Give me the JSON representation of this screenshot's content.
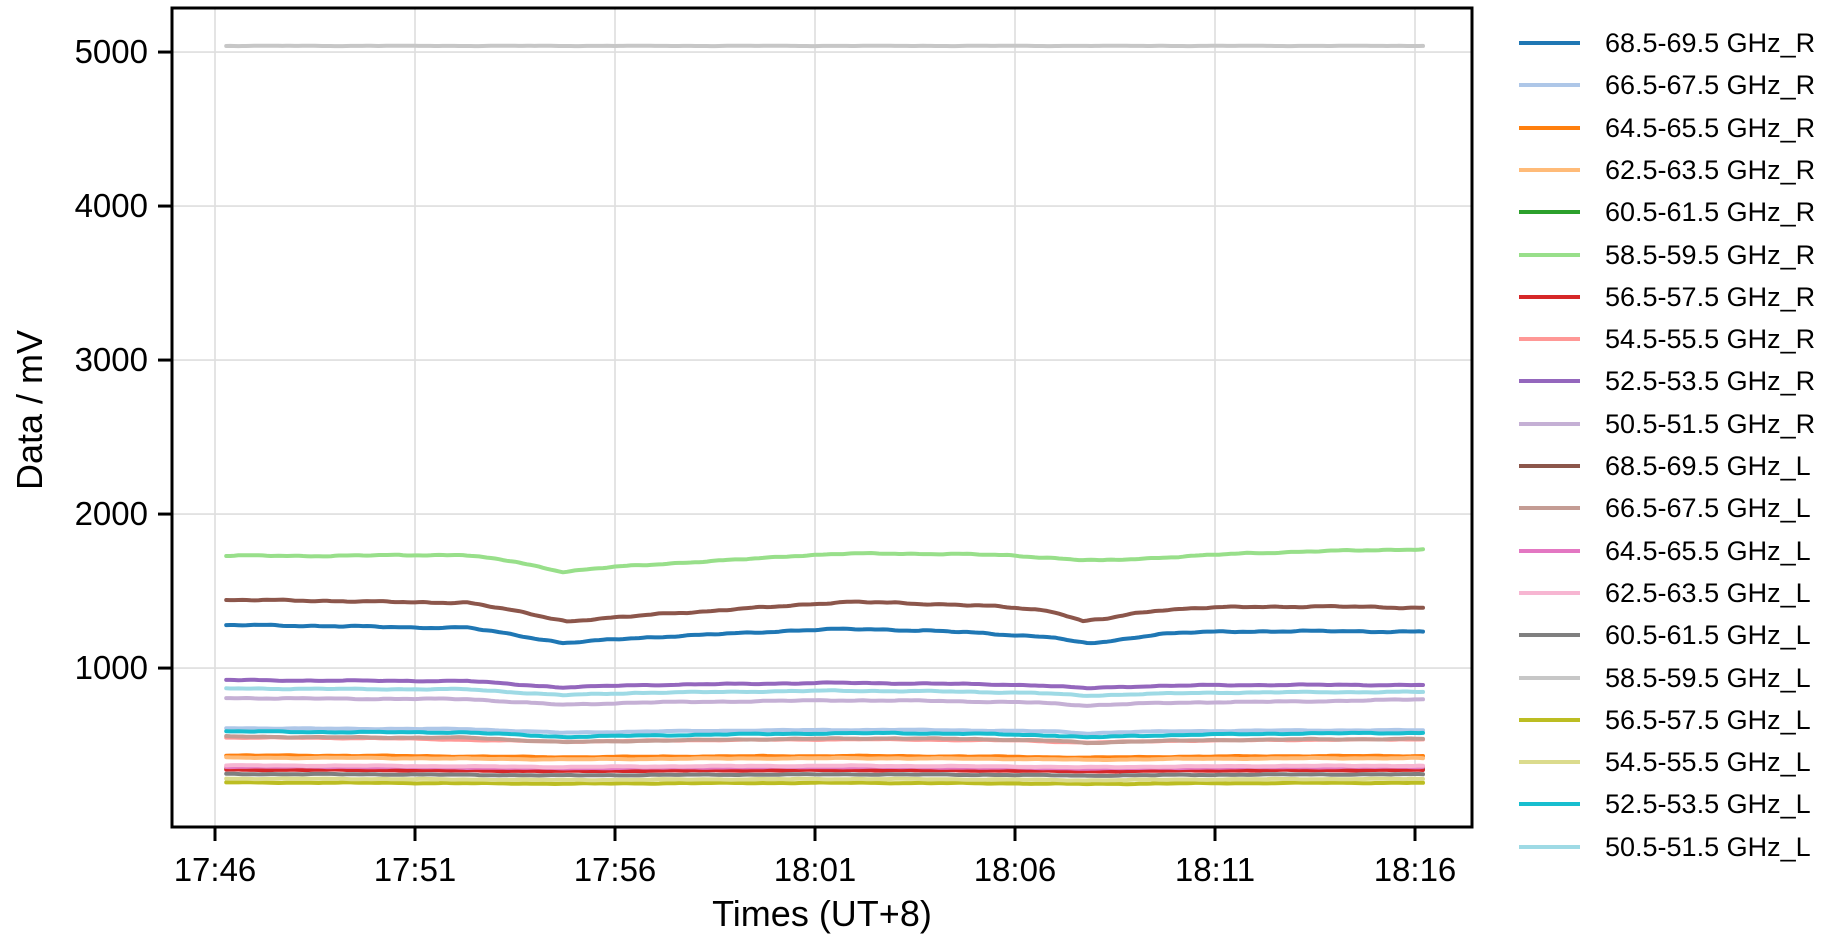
{
  "chart_data": {
    "type": "line",
    "title": "",
    "xlabel": "Times (UT+8)",
    "ylabel": "Data / mV",
    "grid": true,
    "legend_position": "right",
    "xlim_minutes_from_1746": [
      -1.075,
      31.425
    ],
    "ylim": [
      -32,
      5286
    ],
    "x_ticks": [
      {
        "t": 0,
        "label": "17:46"
      },
      {
        "t": 5,
        "label": "17:51"
      },
      {
        "t": 10,
        "label": "17:56"
      },
      {
        "t": 15,
        "label": "18:01"
      },
      {
        "t": 20,
        "label": "18:06"
      },
      {
        "t": 25,
        "label": "18:11"
      },
      {
        "t": 30,
        "label": "18:16"
      }
    ],
    "y_ticks": [
      1000,
      2000,
      3000,
      4000,
      5000
    ],
    "series": [
      {
        "name": "68.5-69.5 GHz_R",
        "color": "#1f77b4",
        "points": [
          [
            0.28,
            1277
          ],
          [
            1.5,
            1278
          ],
          [
            3,
            1272
          ],
          [
            5,
            1264
          ],
          [
            6.3,
            1263
          ],
          [
            7.5,
            1215
          ],
          [
            8.7,
            1164
          ],
          [
            9.3,
            1172
          ],
          [
            10,
            1186
          ],
          [
            11.3,
            1206
          ],
          [
            13,
            1224
          ],
          [
            14.5,
            1245
          ],
          [
            15.5,
            1252
          ],
          [
            16.5,
            1251
          ],
          [
            17.8,
            1244
          ],
          [
            19,
            1228
          ],
          [
            20,
            1214
          ],
          [
            20.6,
            1207
          ],
          [
            21,
            1200
          ],
          [
            21.3,
            1178
          ],
          [
            21.8,
            1160
          ],
          [
            22.3,
            1170
          ],
          [
            23,
            1200
          ],
          [
            23.6,
            1222
          ],
          [
            24.3,
            1230
          ],
          [
            25.5,
            1237
          ],
          [
            27,
            1240
          ],
          [
            28.5,
            1238
          ],
          [
            30.2,
            1237
          ]
        ]
      },
      {
        "name": "66.5-67.5 GHz_R",
        "color": "#aec7e8",
        "points": [
          [
            0.28,
            610
          ],
          [
            3,
            606
          ],
          [
            6.3,
            604
          ],
          [
            8.7,
            580
          ],
          [
            11,
            589
          ],
          [
            14,
            596
          ],
          [
            17,
            599
          ],
          [
            19.5,
            594
          ],
          [
            21,
            588
          ],
          [
            21.8,
            576
          ],
          [
            23,
            586
          ],
          [
            25,
            592
          ],
          [
            27,
            595
          ],
          [
            30.2,
            596
          ]
        ]
      },
      {
        "name": "64.5-65.5 GHz_R",
        "color": "#ff7f0e",
        "points": [
          [
            0.28,
            432
          ],
          [
            4,
            430
          ],
          [
            8.7,
            421
          ],
          [
            12,
            426
          ],
          [
            16,
            429
          ],
          [
            20,
            424
          ],
          [
            21.8,
            418
          ],
          [
            24,
            424
          ],
          [
            27,
            428
          ],
          [
            30.2,
            429
          ]
        ]
      },
      {
        "name": "62.5-63.5 GHz_R",
        "color": "#ffbb78",
        "points": [
          [
            0.28,
            418
          ],
          [
            4,
            416
          ],
          [
            8.7,
            407
          ],
          [
            12,
            412
          ],
          [
            16,
            415
          ],
          [
            20,
            410
          ],
          [
            21.8,
            404
          ],
          [
            24,
            410
          ],
          [
            27,
            414
          ],
          [
            30.2,
            415
          ]
        ]
      },
      {
        "name": "60.5-61.5 GHz_R",
        "color": "#2ca02c",
        "points": [
          [
            0.28,
            346
          ],
          [
            4,
            344
          ],
          [
            8.7,
            337
          ],
          [
            12,
            341
          ],
          [
            16,
            344
          ],
          [
            20,
            340
          ],
          [
            21.8,
            335
          ],
          [
            24,
            340
          ],
          [
            27,
            343
          ],
          [
            30.2,
            344
          ]
        ]
      },
      {
        "name": "58.5-59.5 GHz_R",
        "color": "#98df8a",
        "points": [
          [
            0.28,
            1730
          ],
          [
            2,
            1728
          ],
          [
            4,
            1731
          ],
          [
            6.2,
            1736
          ],
          [
            7.5,
            1690
          ],
          [
            8.7,
            1626
          ],
          [
            9.5,
            1645
          ],
          [
            10,
            1657
          ],
          [
            11.5,
            1682
          ],
          [
            13,
            1702
          ],
          [
            14.5,
            1730
          ],
          [
            15.8,
            1742
          ],
          [
            17,
            1744
          ],
          [
            18.5,
            1740
          ],
          [
            19.8,
            1733
          ],
          [
            20.8,
            1718
          ],
          [
            21.5,
            1703
          ],
          [
            22.2,
            1698
          ],
          [
            23.2,
            1712
          ],
          [
            24.5,
            1728
          ],
          [
            25.8,
            1746
          ],
          [
            27,
            1754
          ],
          [
            28.5,
            1764
          ],
          [
            30.2,
            1772
          ]
        ]
      },
      {
        "name": "56.5-57.5 GHz_R",
        "color": "#d62728",
        "points": [
          [
            0.28,
            340
          ],
          [
            4,
            338
          ],
          [
            8.7,
            331
          ],
          [
            12,
            335
          ],
          [
            16,
            338
          ],
          [
            20,
            334
          ],
          [
            21.8,
            329
          ],
          [
            24,
            334
          ],
          [
            27,
            337
          ],
          [
            30.2,
            338
          ]
        ]
      },
      {
        "name": "54.5-55.5 GHz_R",
        "color": "#ff9896",
        "points": [
          [
            0.28,
            549
          ],
          [
            4,
            545
          ],
          [
            8.7,
            522
          ],
          [
            12,
            532
          ],
          [
            16,
            538
          ],
          [
            20,
            530
          ],
          [
            21.8,
            516
          ],
          [
            24,
            528
          ],
          [
            27,
            534
          ],
          [
            30.2,
            537
          ]
        ]
      },
      {
        "name": "52.5-53.5 GHz_R",
        "color": "#9467bd",
        "points": [
          [
            0.28,
            922
          ],
          [
            3,
            918
          ],
          [
            6.3,
            916
          ],
          [
            8.7,
            874
          ],
          [
            10.5,
            889
          ],
          [
            13,
            897
          ],
          [
            15.5,
            904
          ],
          [
            18,
            899
          ],
          [
            20.5,
            889
          ],
          [
            21.8,
            869
          ],
          [
            23,
            881
          ],
          [
            25,
            889
          ],
          [
            27,
            891
          ],
          [
            30.2,
            890
          ]
        ]
      },
      {
        "name": "50.5-51.5 GHz_R",
        "color": "#c5b0d5",
        "points": [
          [
            0.28,
            806
          ],
          [
            3,
            801
          ],
          [
            6.3,
            799
          ],
          [
            8.7,
            761
          ],
          [
            10.5,
            776
          ],
          [
            13,
            783
          ],
          [
            15.5,
            791
          ],
          [
            18,
            787
          ],
          [
            20.5,
            776
          ],
          [
            21.8,
            757
          ],
          [
            23,
            769
          ],
          [
            25,
            779
          ],
          [
            27,
            782
          ],
          [
            30.2,
            797
          ]
        ]
      },
      {
        "name": "68.5-69.5 GHz_L",
        "color": "#8c564b",
        "points": [
          [
            0.28,
            1441
          ],
          [
            1.5,
            1440
          ],
          [
            3,
            1436
          ],
          [
            5,
            1426
          ],
          [
            6.3,
            1427
          ],
          [
            7.5,
            1370
          ],
          [
            8.8,
            1304
          ],
          [
            9.5,
            1318
          ],
          [
            10.3,
            1332
          ],
          [
            11.3,
            1357
          ],
          [
            12.3,
            1368
          ],
          [
            13.5,
            1390
          ],
          [
            14.8,
            1415
          ],
          [
            15.8,
            1428
          ],
          [
            17,
            1424
          ],
          [
            18.3,
            1413
          ],
          [
            19.5,
            1400
          ],
          [
            20.3,
            1386
          ],
          [
            20.8,
            1374
          ],
          [
            21.2,
            1350
          ],
          [
            21.7,
            1303
          ],
          [
            22.3,
            1320
          ],
          [
            23,
            1355
          ],
          [
            23.6,
            1377
          ],
          [
            24.5,
            1389
          ],
          [
            26,
            1398
          ],
          [
            27.5,
            1400
          ],
          [
            29,
            1396
          ],
          [
            30.2,
            1392
          ]
        ]
      },
      {
        "name": "66.5-67.5 GHz_L",
        "color": "#c49c94",
        "points": [
          [
            0.28,
            556
          ],
          [
            3,
            550
          ],
          [
            6.3,
            548
          ],
          [
            8.7,
            519
          ],
          [
            11,
            529
          ],
          [
            14,
            539
          ],
          [
            17,
            544
          ],
          [
            19.5,
            537
          ],
          [
            21,
            528
          ],
          [
            21.8,
            513
          ],
          [
            23,
            524
          ],
          [
            25,
            532
          ],
          [
            27,
            537
          ],
          [
            30.2,
            540
          ]
        ]
      },
      {
        "name": "64.5-65.5 GHz_L",
        "color": "#e377c2",
        "points": [
          [
            0.28,
            360
          ],
          [
            4,
            358
          ],
          [
            8.7,
            350
          ],
          [
            12,
            355
          ],
          [
            16,
            358
          ],
          [
            20,
            353
          ],
          [
            21.8,
            348
          ],
          [
            24,
            353
          ],
          [
            27,
            357
          ],
          [
            30.2,
            358
          ]
        ]
      },
      {
        "name": "62.5-63.5 GHz_L",
        "color": "#f7b6d2",
        "points": [
          [
            0.28,
            368
          ],
          [
            4,
            366
          ],
          [
            8.7,
            358
          ],
          [
            12,
            363
          ],
          [
            16,
            366
          ],
          [
            20,
            361
          ],
          [
            21.8,
            356
          ],
          [
            24,
            361
          ],
          [
            27,
            365
          ],
          [
            30.2,
            366
          ]
        ]
      },
      {
        "name": "60.5-61.5 GHz_L",
        "color": "#7f7f7f",
        "points": [
          [
            0.28,
            312
          ],
          [
            4,
            310
          ],
          [
            8.7,
            303
          ],
          [
            12,
            307
          ],
          [
            16,
            310
          ],
          [
            20,
            306
          ],
          [
            21.8,
            301
          ],
          [
            24,
            306
          ],
          [
            27,
            309
          ],
          [
            30.2,
            310
          ]
        ]
      },
      {
        "name": "58.5-59.5 GHz_L",
        "color": "#c7c7c7",
        "points": [
          [
            0.28,
            5040
          ],
          [
            10,
            5040
          ],
          [
            20,
            5040
          ],
          [
            30.2,
            5040
          ]
        ]
      },
      {
        "name": "56.5-57.5 GHz_L",
        "color": "#bcbd22",
        "points": [
          [
            0.28,
            257
          ],
          [
            4,
            255
          ],
          [
            8.7,
            249
          ],
          [
            12,
            253
          ],
          [
            16,
            255
          ],
          [
            20,
            251
          ],
          [
            21.8,
            247
          ],
          [
            24,
            251
          ],
          [
            27,
            254
          ],
          [
            30.2,
            255
          ]
        ]
      },
      {
        "name": "54.5-55.5 GHz_L",
        "color": "#dbdb8d",
        "points": [
          [
            0.28,
            282
          ],
          [
            4,
            280
          ],
          [
            8.7,
            273
          ],
          [
            12,
            277
          ],
          [
            16,
            280
          ],
          [
            20,
            276
          ],
          [
            21.8,
            271
          ],
          [
            24,
            276
          ],
          [
            27,
            279
          ],
          [
            30.2,
            280
          ]
        ]
      },
      {
        "name": "52.5-53.5 GHz_L",
        "color": "#17becf",
        "points": [
          [
            0.28,
            589
          ],
          [
            3,
            584
          ],
          [
            6.3,
            582
          ],
          [
            8.7,
            553
          ],
          [
            11,
            563
          ],
          [
            14,
            573
          ],
          [
            17,
            578
          ],
          [
            19.5,
            571
          ],
          [
            21,
            562
          ],
          [
            21.8,
            549
          ],
          [
            23,
            560
          ],
          [
            25,
            569
          ],
          [
            27,
            575
          ],
          [
            30.2,
            579
          ]
        ]
      },
      {
        "name": "50.5-51.5 GHz_L",
        "color": "#9edae5",
        "points": [
          [
            0.28,
            868
          ],
          [
            3,
            864
          ],
          [
            6.3,
            862
          ],
          [
            8.7,
            824
          ],
          [
            10.5,
            839
          ],
          [
            13,
            846
          ],
          [
            15.5,
            853
          ],
          [
            18,
            849
          ],
          [
            20.5,
            839
          ],
          [
            21.8,
            820
          ],
          [
            23,
            831
          ],
          [
            25,
            840
          ],
          [
            27,
            843
          ],
          [
            30.2,
            845
          ]
        ]
      }
    ],
    "style": {
      "grid_color": "#dedede",
      "spine_color": "#000000",
      "background": "#ffffff"
    }
  }
}
